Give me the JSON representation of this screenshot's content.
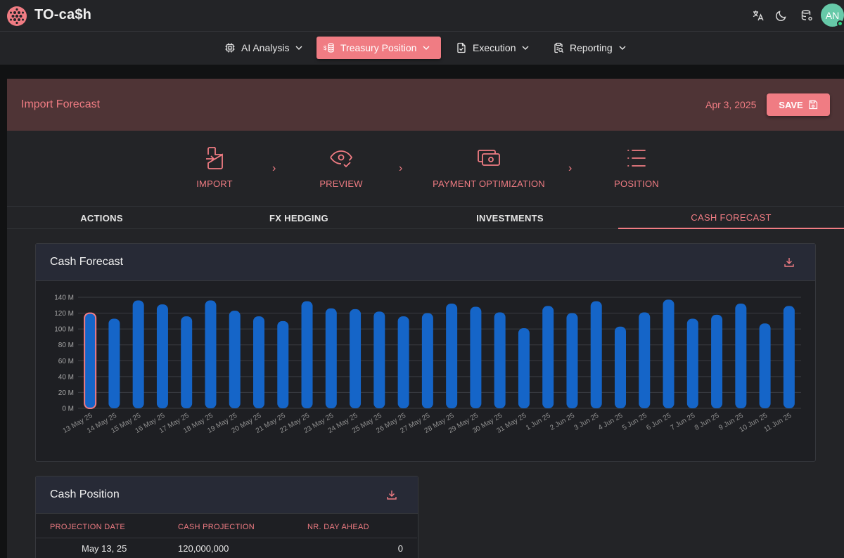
{
  "app": {
    "title": "TO-ca$h",
    "avatar_initials": "AN"
  },
  "nav": [
    {
      "label": "AI Analysis",
      "active": false
    },
    {
      "label": "Treasury Position",
      "active": true
    },
    {
      "label": "Execution",
      "active": false
    },
    {
      "label": "Reporting",
      "active": false
    }
  ],
  "panel": {
    "title": "Import Forecast",
    "date": "Apr 3, 2025",
    "save_label": "SAVE"
  },
  "steps": [
    {
      "label": "IMPORT",
      "icon": "import-file-icon"
    },
    {
      "label": "PREVIEW",
      "icon": "eye-check-icon"
    },
    {
      "label": "PAYMENT OPTIMIZATION",
      "icon": "cash-icon"
    },
    {
      "label": "POSITION",
      "icon": "list-icon"
    }
  ],
  "tabs": [
    {
      "label": "ACTIONS",
      "active": false
    },
    {
      "label": "FX HEDGING",
      "active": false
    },
    {
      "label": "INVESTMENTS",
      "active": false
    },
    {
      "label": "CASH FORECAST",
      "active": true
    }
  ],
  "forecast_card": {
    "title": "Cash Forecast"
  },
  "chart_data": {
    "type": "bar",
    "title": "Cash Forecast",
    "xlabel": "",
    "ylabel": "",
    "ylim": [
      0,
      140
    ],
    "y_ticks": [
      "0 M",
      "20 M",
      "40 M",
      "60 M",
      "80 M",
      "100 M",
      "120 M",
      "140 M"
    ],
    "categories": [
      "13 May 25",
      "14 May 25",
      "15 May 25",
      "16 May 25",
      "17 May 25",
      "18 May 25",
      "19 May 25",
      "20 May 25",
      "21 May 25",
      "22 May 25",
      "23 May 25",
      "24 May 25",
      "25 May 25",
      "26 May 25",
      "27 May 25",
      "28 May 25",
      "29 May 25",
      "30 May 25",
      "31 May 25",
      "1 Jun 25",
      "2 Jun 25",
      "3 Jun 25",
      "4 Jun 25",
      "5 Jun 25",
      "6 Jun 25",
      "7 Jun 25",
      "8 Jun 25",
      "9 Jun 25",
      "10 Jun 25",
      "11 Jun 25"
    ],
    "values": [
      120,
      113,
      136,
      131,
      116,
      136,
      123,
      116,
      110,
      135,
      126,
      125,
      122,
      116,
      120,
      132,
      128,
      121,
      101,
      129,
      120,
      135,
      103,
      121,
      137,
      113,
      118,
      132,
      107,
      129
    ],
    "highlight_index": 0,
    "colors": {
      "bar": "#1565c8",
      "highlight_fill": "#1565c8",
      "highlight_stroke": "#f07c83",
      "grid": "#3a3c42"
    }
  },
  "position_card": {
    "title": "Cash Position",
    "columns": [
      "PROJECTION DATE",
      "CASH PROJECTION",
      "NR. DAY AHEAD"
    ],
    "rows": [
      {
        "date": "May 13, 25",
        "projection": "120,000,000",
        "days_ahead": "0"
      }
    ]
  },
  "colors": {
    "accent": "#f07c83",
    "header_bg": "#232427",
    "panel_head_bg": "#4f3436"
  }
}
